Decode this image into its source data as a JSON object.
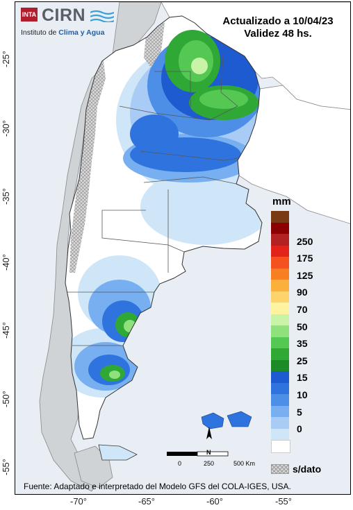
{
  "header": {
    "logo_badge": "INTA",
    "logo_name": "CIRN",
    "institute_prefix": "Instituto de ",
    "institute_highlight": "Clima y Agua",
    "updated": "Actualizado a 10/04/23",
    "validity": "Validez 48 hs."
  },
  "legend": {
    "unit": "mm",
    "colors": [
      "#7a3b14",
      "#8b0000",
      "#b22222",
      "#e2231a",
      "#f4511e",
      "#f77f1f",
      "#fbb03b",
      "#fdd36b",
      "#fff3a0",
      "#c9f4a8",
      "#8fe17b",
      "#55c853",
      "#2fa836",
      "#1c8a26",
      "#1e5bd0",
      "#2f74de",
      "#4d8fe6",
      "#77aff0",
      "#a8ccf5",
      "#cfe6f9",
      "#ffffff"
    ],
    "labels": [
      {
        "text": "250",
        "index": 2
      },
      {
        "text": "175",
        "index": 4
      },
      {
        "text": "125",
        "index": 6
      },
      {
        "text": "90",
        "index": 8
      },
      {
        "text": "70",
        "index": 10
      },
      {
        "text": "50",
        "index": 12
      },
      {
        "text": "35",
        "index": 14
      },
      {
        "text": "25",
        "index": 16
      },
      {
        "text": "15",
        "index": 18
      },
      {
        "text": "10",
        "index": 20
      },
      {
        "text": "5",
        "index": 22
      },
      {
        "text": "0",
        "index": 24
      }
    ],
    "nodata_label": "s/dato"
  },
  "axes": {
    "latitudes": [
      "-25°",
      "-30°",
      "-35°",
      "-40°",
      "-45°",
      "-50°",
      "-55°"
    ],
    "longitudes": [
      "-70°",
      "-65°",
      "-60°",
      "-55°"
    ]
  },
  "scale_bar": {
    "labels": [
      "0",
      "250",
      "500 Km"
    ],
    "north": "N"
  },
  "source": "Fuente: Adaptado e interpretado del Modelo GFS del COLA-IGES, USA."
}
